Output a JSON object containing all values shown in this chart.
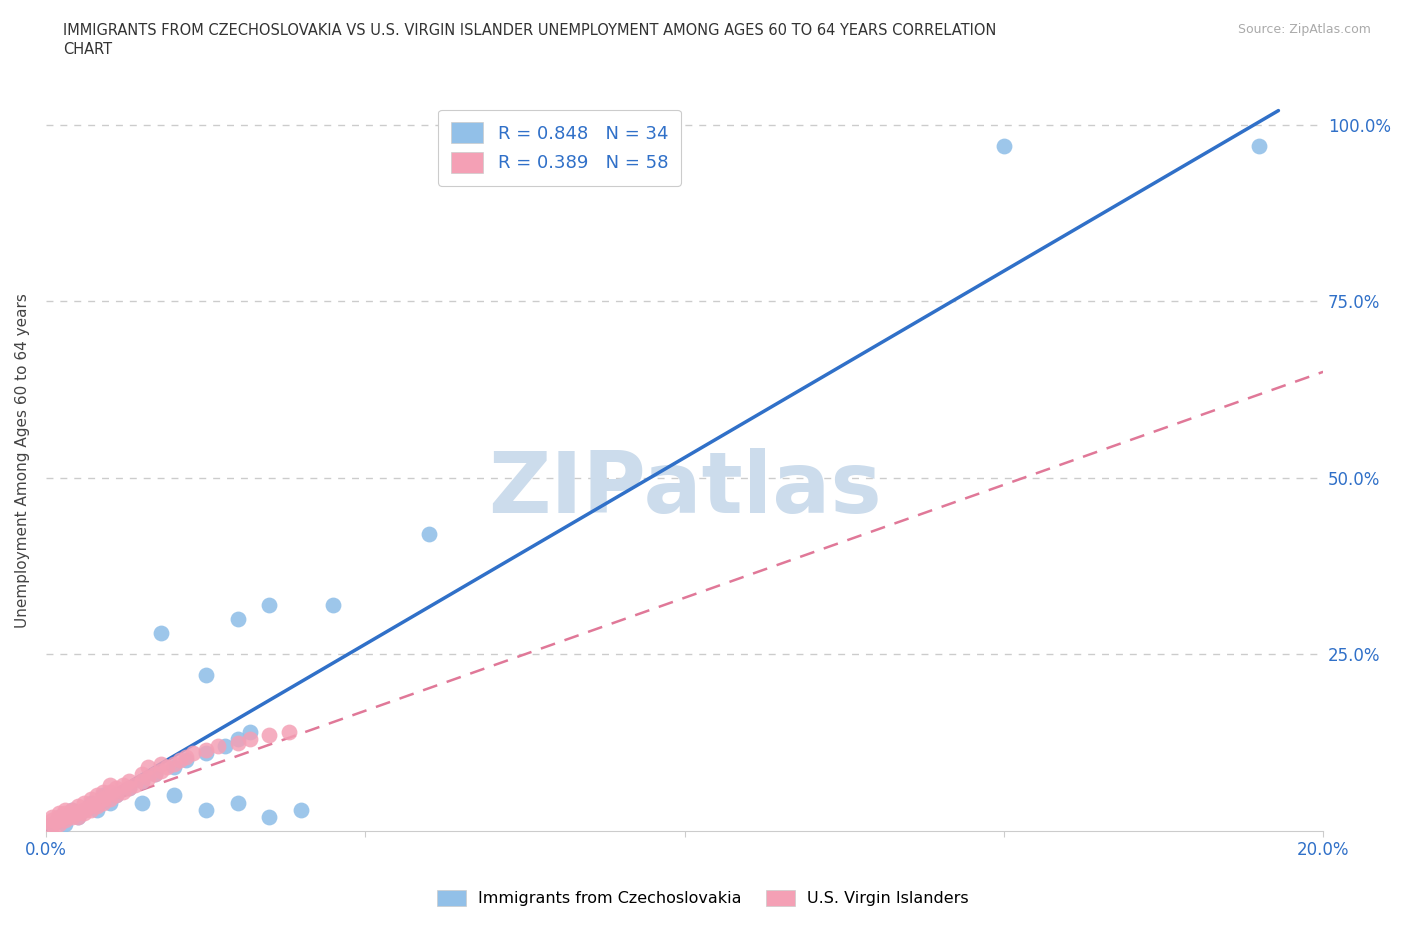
{
  "title_line1": "IMMIGRANTS FROM CZECHOSLOVAKIA VS U.S. VIRGIN ISLANDER UNEMPLOYMENT AMONG AGES 60 TO 64 YEARS CORRELATION",
  "title_line2": "CHART",
  "source": "Source: ZipAtlas.com",
  "ylabel": "Unemployment Among Ages 60 to 64 years",
  "xlim": [
    0.0,
    0.2
  ],
  "ylim": [
    0.0,
    1.05
  ],
  "grid_color": "#cccccc",
  "background_color": "#ffffff",
  "watermark": "ZIPatlas",
  "watermark_color": "#ccdcec",
  "blue_color": "#92c0e8",
  "pink_color": "#f4a0b5",
  "trend_blue_color": "#3070c8",
  "trend_pink_color": "#e07898",
  "legend_R1": "R = 0.848",
  "legend_N1": "N = 34",
  "legend_R2": "R = 0.389",
  "legend_N2": "N = 58",
  "legend_label1": "Immigrants from Czechoslovakia",
  "legend_label2": "U.S. Virgin Islanders",
  "text_color": "#3070c8",
  "title_color": "#333333",
  "blue_trend_x0": 0.0,
  "blue_trend_y0": 0.0,
  "blue_trend_x1": 0.193,
  "blue_trend_y1": 1.02,
  "pink_trend_x0": 0.0,
  "pink_trend_y0": 0.01,
  "pink_trend_x1": 0.2,
  "pink_trend_y1": 0.65,
  "blue_dots_x": [
    0.001,
    0.002,
    0.003,
    0.004,
    0.005,
    0.006,
    0.007,
    0.008,
    0.009,
    0.01,
    0.011,
    0.013,
    0.015,
    0.017,
    0.02,
    0.022,
    0.025,
    0.028,
    0.03,
    0.032,
    0.018,
    0.025,
    0.03,
    0.035,
    0.045,
    0.06,
    0.15,
    0.19,
    0.015,
    0.02,
    0.025,
    0.03,
    0.035,
    0.04
  ],
  "blue_dots_y": [
    0.01,
    0.02,
    0.01,
    0.03,
    0.02,
    0.03,
    0.04,
    0.03,
    0.05,
    0.04,
    0.05,
    0.06,
    0.07,
    0.08,
    0.09,
    0.1,
    0.11,
    0.12,
    0.13,
    0.14,
    0.28,
    0.22,
    0.3,
    0.32,
    0.32,
    0.42,
    0.97,
    0.97,
    0.04,
    0.05,
    0.03,
    0.04,
    0.02,
    0.03
  ],
  "pink_dots_x": [
    0.001,
    0.001,
    0.001,
    0.001,
    0.002,
    0.002,
    0.002,
    0.002,
    0.003,
    0.003,
    0.003,
    0.003,
    0.004,
    0.004,
    0.004,
    0.005,
    0.005,
    0.005,
    0.006,
    0.006,
    0.006,
    0.007,
    0.007,
    0.007,
    0.008,
    0.008,
    0.008,
    0.009,
    0.009,
    0.009,
    0.01,
    0.01,
    0.01,
    0.011,
    0.011,
    0.012,
    0.012,
    0.013,
    0.013,
    0.014,
    0.015,
    0.015,
    0.016,
    0.016,
    0.017,
    0.018,
    0.018,
    0.019,
    0.02,
    0.021,
    0.022,
    0.023,
    0.025,
    0.027,
    0.03,
    0.032,
    0.035,
    0.038
  ],
  "pink_dots_y": [
    0.005,
    0.01,
    0.015,
    0.02,
    0.01,
    0.015,
    0.02,
    0.025,
    0.015,
    0.02,
    0.025,
    0.03,
    0.02,
    0.025,
    0.03,
    0.02,
    0.025,
    0.035,
    0.025,
    0.03,
    0.04,
    0.03,
    0.035,
    0.045,
    0.035,
    0.04,
    0.05,
    0.04,
    0.045,
    0.055,
    0.045,
    0.055,
    0.065,
    0.05,
    0.06,
    0.055,
    0.065,
    0.06,
    0.07,
    0.065,
    0.07,
    0.08,
    0.075,
    0.09,
    0.08,
    0.085,
    0.095,
    0.09,
    0.095,
    0.1,
    0.105,
    0.11,
    0.115,
    0.12,
    0.125,
    0.13,
    0.135,
    0.14
  ]
}
